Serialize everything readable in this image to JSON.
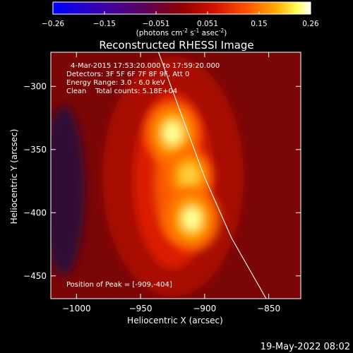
{
  "chart_data": {
    "type": "heatmap",
    "title": "Reconstructed RHESSI Image",
    "xlabel": "Heliocentric X (arcsec)",
    "ylabel": "Heliocentric Y (arcsec)",
    "xlim": [
      -1020,
      -825
    ],
    "ylim": [
      -468,
      -273
    ],
    "x_ticks": [
      -1000,
      -950,
      -900,
      -850
    ],
    "y_ticks": [
      -300,
      -350,
      -400,
      -450
    ],
    "colorbar": {
      "min": -0.26,
      "max": 0.26,
      "ticks": [
        "-0.26",
        "-0.15",
        "-0.051",
        "0.051",
        "0.15",
        "0.26"
      ],
      "unit_base": "(photons cm",
      "unit_sup1": "-2",
      "unit_mid1": " s",
      "unit_sup2": "-1",
      "unit_mid2": " asec",
      "unit_sup3": "-2",
      "unit_end": ")"
    },
    "sources": [
      {
        "x": -925,
        "y": -337,
        "intensity": 0.26
      },
      {
        "x": -912,
        "y": -371,
        "intensity": 0.21
      },
      {
        "x": -910,
        "y": -405,
        "intensity": 0.26
      }
    ],
    "limb_curve": [
      [
        -936,
        -273
      ],
      [
        -919,
        -320
      ],
      [
        -900,
        -372
      ],
      [
        -879,
        -420
      ],
      [
        -852,
        -468
      ]
    ],
    "annotations": {
      "time_range": "4-Mar-2015 17:53:20.000 to 17:59:20.000",
      "detectors": "Detectors: 3F 5F 6F 7F 8F 9F, Att 0",
      "energy": "Energy Range: 3.0 - 6.0 keV",
      "clean": "Clean    Total counts: 5.18E+04",
      "peak": "Position of Peak = [-909,-404]"
    }
  },
  "footer": {
    "date": "19-May-2022 08:02"
  }
}
